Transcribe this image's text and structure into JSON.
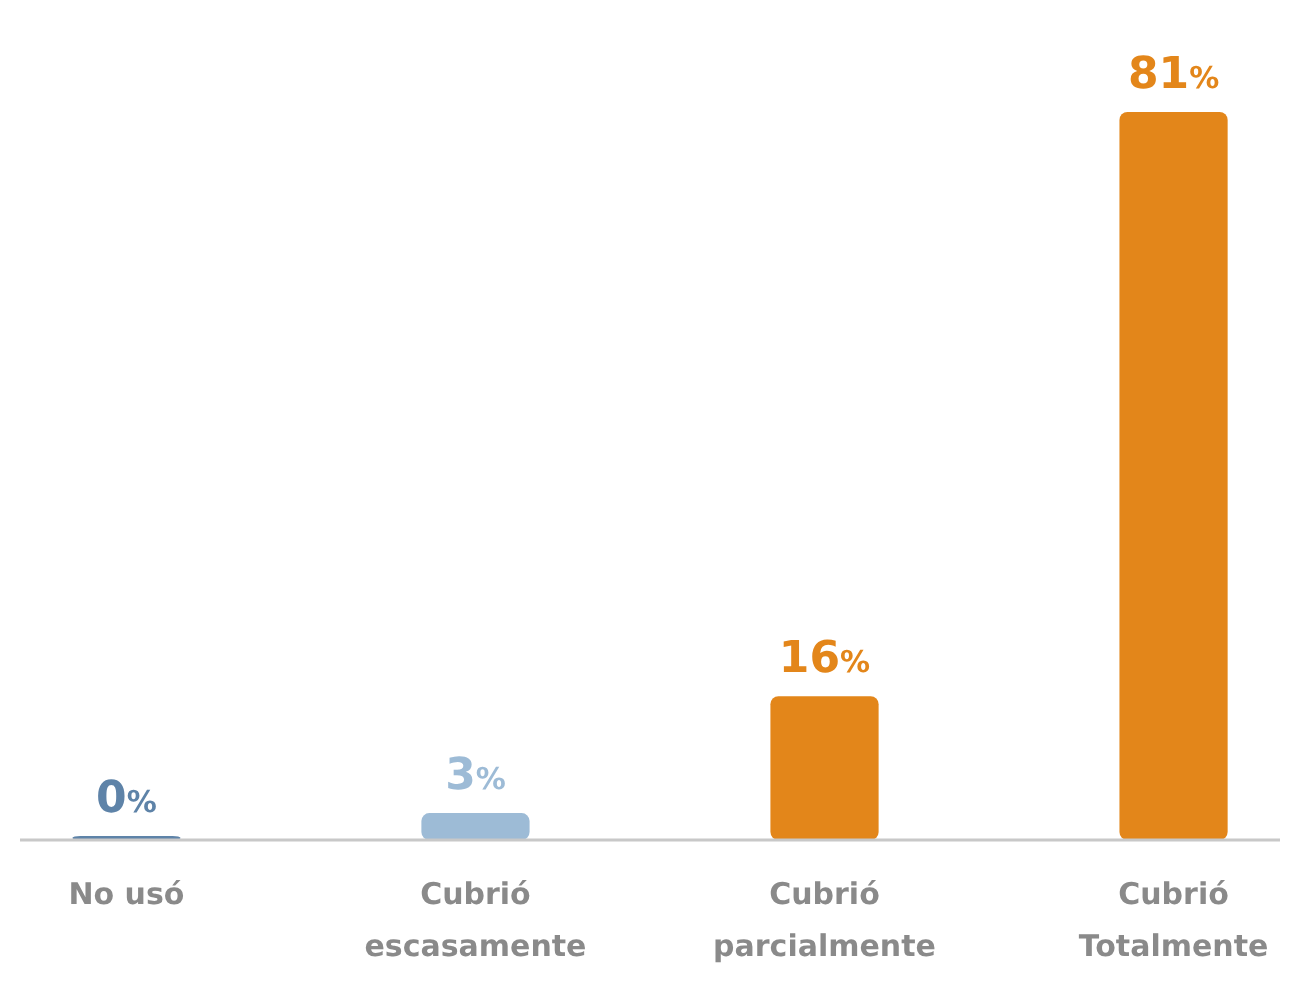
{
  "chart_data": {
    "type": "bar",
    "categories": [
      "No usó",
      "Cubrió escasamente",
      "Cubrió parcialmente",
      "Cubrió Totalmente"
    ],
    "values": [
      0,
      3,
      16,
      81
    ],
    "colors": [
      "#5e83a8",
      "#9dbbd6",
      "#e3861a",
      "#e3861a"
    ],
    "value_labels": [
      "0%",
      "3%",
      "16%",
      "81%"
    ]
  }
}
